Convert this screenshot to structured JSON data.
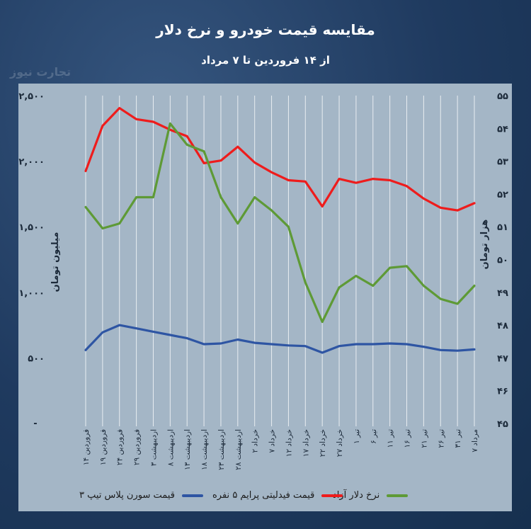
{
  "header": {
    "title": "مقایسه قیمت خودرو و نرخ دلار",
    "subtitle": "از ۱۴ فروردین تا ۷ مرداد",
    "watermark": "تجارت نیوز"
  },
  "chart_data": {
    "type": "line",
    "title": "مقایسه قیمت خودرو و نرخ دلار",
    "subtitle": "از ۱۴ فروردین تا ۷ مرداد",
    "categories": [
      "۱۴ فروردین",
      "۱۹ فروردین",
      "۲۴ فروردین",
      "۲۹ فروردین",
      "۳ اردیبهشت",
      "۸ اردیبهشت",
      "۱۳ اردیبهشت",
      "۱۸ اردیبهشت",
      "۲۳ اردیبهشت",
      "۲۸ اردیبهشت",
      "۲ خرداد",
      "۷ خرداد",
      "۱۲ خرداد",
      "۱۷ خرداد",
      "۲۲ خرداد",
      "۲۷ خرداد",
      "۱ تیر",
      "۶ تیر",
      "۱۱ تیر",
      "۱۶ تیر",
      "۲۱ تیر",
      "۲۶ تیر",
      "۳۱ تیر",
      "۷ مرداد"
    ],
    "y_left": {
      "label": "میلیون تومان",
      "ticks": [
        "۵۰۰",
        "۱,۰۰۰",
        "۱,۵۰۰",
        "۲,۰۰۰",
        "۲,۵۰۰"
      ],
      "tick_values": [
        500,
        1000,
        1500,
        2000,
        2500
      ],
      "range": [
        0,
        2500
      ]
    },
    "y_right": {
      "label": "هزار تومان",
      "ticks": [
        "۴۵",
        "۴۶",
        "۴۷",
        "۴۸",
        "۴۹",
        "۵۰",
        "۵۱",
        "۵۲",
        "۵۳",
        "۵۴",
        "۵۵"
      ],
      "tick_values": [
        45,
        46,
        47,
        48,
        49,
        50,
        51,
        52,
        53,
        54,
        55
      ],
      "range": [
        45,
        55
      ]
    },
    "grid": "vertical",
    "legend_position": "bottom",
    "series": [
      {
        "name": "قیمت سورن پلاس تیپ ۳",
        "axis": "left",
        "color": "#2e55a3",
        "values": [
          560,
          695,
          750,
          725,
          700,
          675,
          650,
          605,
          610,
          640,
          615,
          605,
          595,
          590,
          540,
          590,
          605,
          605,
          610,
          605,
          585,
          560,
          555,
          565
        ]
      },
      {
        "name": "قیمت فیدلیتی پرایم ۵ نفره",
        "axis": "left",
        "color": "#ee1c1c",
        "values": [
          1925,
          2270,
          2405,
          2320,
          2300,
          2240,
          2190,
          1985,
          2005,
          2110,
          1990,
          1915,
          1855,
          1845,
          1655,
          1865,
          1835,
          1865,
          1855,
          1810,
          1715,
          1645,
          1625,
          1680
        ]
      },
      {
        "name": "نرخ دلار آزاد",
        "axis": "right",
        "color": "#5e9a36",
        "values": [
          51.6,
          50.95,
          51.1,
          51.9,
          51.9,
          54.15,
          53.5,
          53.3,
          51.9,
          51.1,
          51.9,
          51.5,
          51.0,
          49.3,
          48.1,
          49.15,
          49.5,
          49.2,
          49.75,
          49.8,
          49.2,
          48.8,
          48.65,
          49.2
        ]
      }
    ]
  }
}
